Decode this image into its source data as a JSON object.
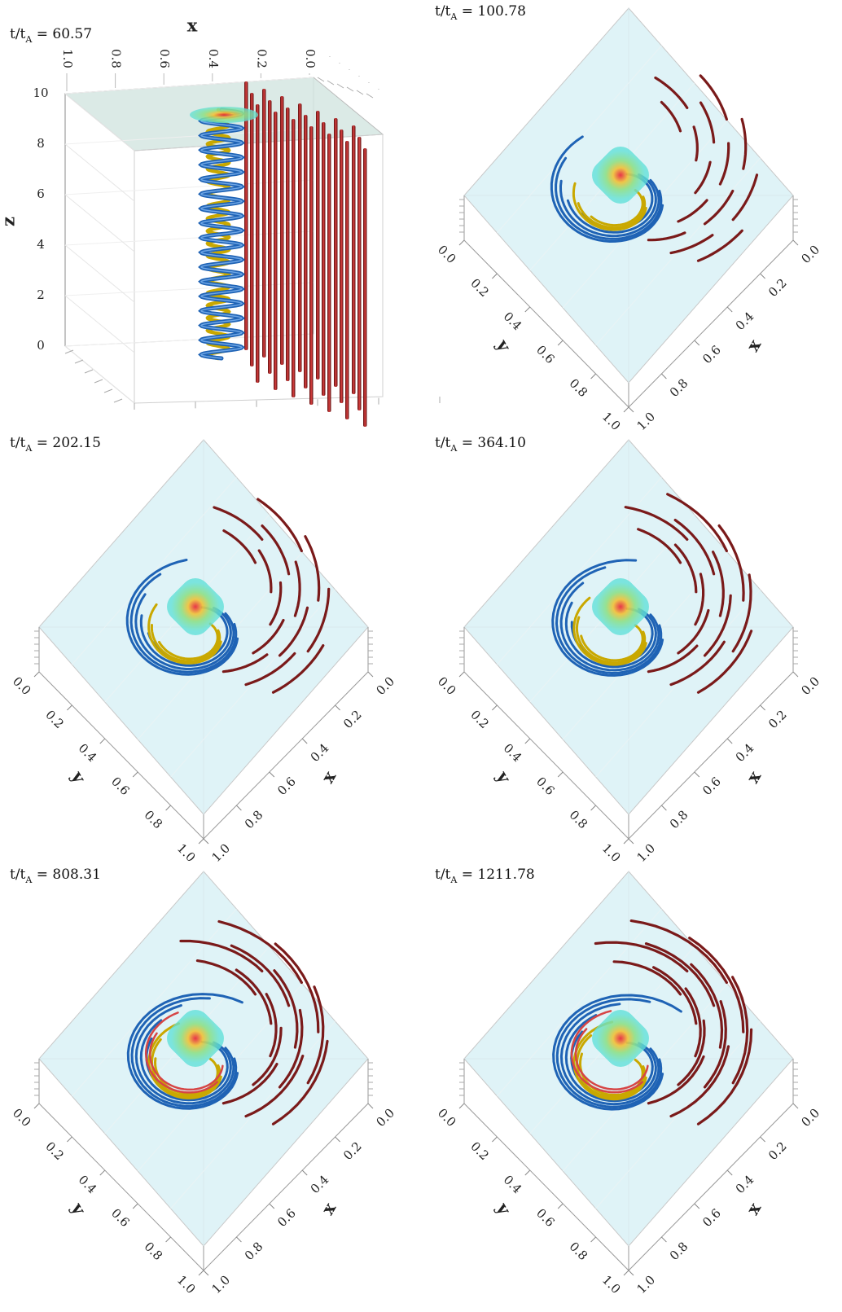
{
  "panels": [
    {
      "time_prefix": "t/t",
      "time_sub": "A",
      "time_value": "= 60.57",
      "view": "side"
    },
    {
      "time_prefix": "t/t",
      "time_sub": "A",
      "time_value": "= 100.78",
      "view": "top",
      "twist": 0.35
    },
    {
      "time_prefix": "t/t",
      "time_sub": "A",
      "time_value": "= 202.15",
      "view": "top",
      "twist": 0.55
    },
    {
      "time_prefix": "t/t",
      "time_sub": "A",
      "time_value": "= 364.10",
      "view": "top",
      "twist": 0.7
    },
    {
      "time_prefix": "t/t",
      "time_sub": "A",
      "time_value": "= 808.31",
      "view": "top",
      "twist": 0.9
    },
    {
      "time_prefix": "t/t",
      "time_sub": "A",
      "time_value": "= 1211.78",
      "view": "top",
      "twist": 1.0
    }
  ],
  "side_axes": {
    "x_name": "x",
    "z_name": "z",
    "x_ticks": [
      "1.0",
      "0.8",
      "0.6",
      "0.4",
      "0.2",
      "0.0"
    ],
    "z_ticks": [
      "0",
      "2",
      "4",
      "6",
      "8",
      "10"
    ]
  },
  "top_axes": {
    "x_name": "x",
    "y_name": "y",
    "ticks": [
      "0.0",
      "0.2",
      "0.4",
      "0.6",
      "0.8",
      "1.0"
    ]
  },
  "colors": {
    "red_lines": "#b22222",
    "dark_red_lines": "#7a1a1a",
    "blue_lines": "#1f63b5",
    "yellow_lines": "#c9a800",
    "plane": "#dff3f7",
    "blob_outer": "#5fe0d8",
    "blob_core": "#e8253a"
  }
}
